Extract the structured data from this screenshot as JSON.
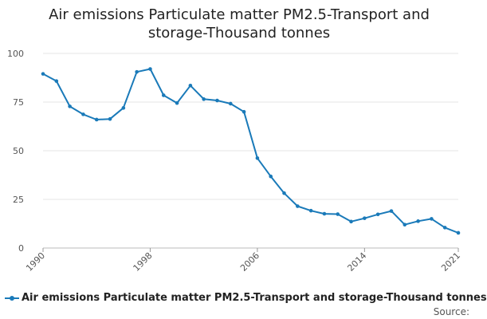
{
  "chart_data": {
    "type": "line",
    "title_lines": [
      "Air emissions Particulate matter PM2.5-Transport and",
      "storage-Thousand tonnes"
    ],
    "xlabel": "",
    "ylabel": "",
    "x": [
      1990,
      1991,
      1992,
      1993,
      1994,
      1995,
      1996,
      1997,
      1998,
      1999,
      2000,
      2001,
      2002,
      2003,
      2004,
      2005,
      2006,
      2007,
      2008,
      2009,
      2010,
      2011,
      2012,
      2013,
      2014,
      2015,
      2016,
      2017,
      2018,
      2019,
      2020,
      2021
    ],
    "series": [
      {
        "name": "Air emissions Particulate matter PM2.5-Transport and storage-Thousand tonnes",
        "values": [
          89.5,
          85.8,
          72.8,
          68.7,
          66.0,
          66.3,
          72.0,
          90.5,
          92.0,
          78.5,
          74.5,
          83.5,
          76.5,
          75.8,
          74.2,
          70.0,
          46.2,
          36.8,
          28.2,
          21.5,
          19.2,
          17.6,
          17.4,
          13.6,
          15.3,
          17.3,
          19.0,
          12.0,
          13.8,
          15.0,
          10.5,
          7.8
        ]
      }
    ],
    "ylim": [
      0,
      100
    ],
    "yticks": [
      0,
      25,
      50,
      75,
      100
    ],
    "xticks": [
      "1990",
      "1998",
      "2006",
      "2014",
      "2021"
    ],
    "grid": true,
    "legend_position": "bottom-left",
    "source_label": "Source:",
    "line_color": "#1a7ab9"
  }
}
